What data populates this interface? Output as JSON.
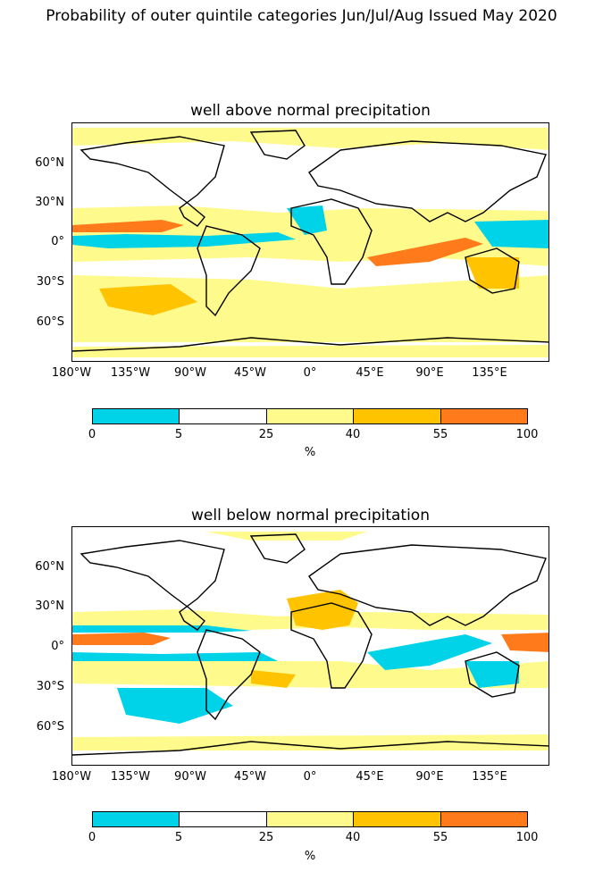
{
  "title": "Probability of outer quintile categories Jun/Jul/Aug Issued May 2020",
  "panels": [
    {
      "title": "well above normal precipitation"
    },
    {
      "title": "well below normal precipitation"
    }
  ],
  "lat_ticks": [
    "60°N",
    "30°N",
    "0°",
    "30°S",
    "60°S"
  ],
  "lon_ticks": [
    "180°W",
    "135°W",
    "90°W",
    "45°W",
    "0°",
    "45°E",
    "90°E",
    "135°E"
  ],
  "colorbar": {
    "labels": [
      "0",
      "5",
      "25",
      "40",
      "55",
      "100"
    ],
    "unit": "%",
    "colors": [
      "#00d2e8",
      "#ffffff",
      "#fffa8c",
      "#ffc300",
      "#ff7a1a"
    ]
  }
}
